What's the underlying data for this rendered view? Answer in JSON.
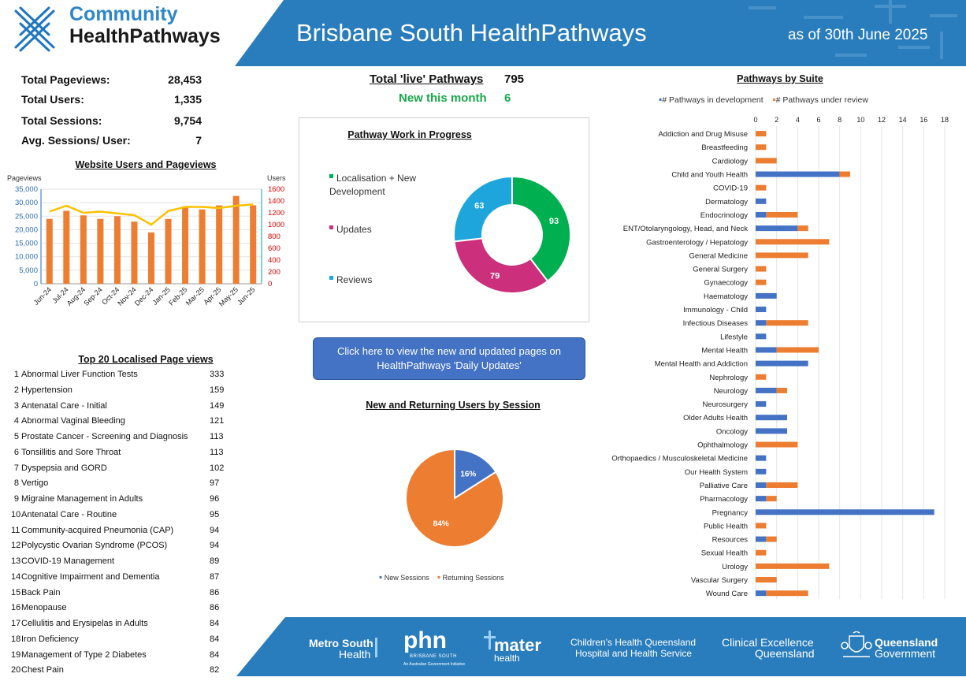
{
  "header": {
    "logo_line1": "Community",
    "logo_line2": "HealthPathways",
    "title": "Brisbane South HealthPathways",
    "as_of": "as of 30th June 2025"
  },
  "stats": [
    {
      "label": "Total Pageviews:",
      "value": "28,453"
    },
    {
      "label": "Total Users:",
      "value": "1,335"
    },
    {
      "label": "Total Sessions:",
      "value": "9,754"
    },
    {
      "label": "Avg. Sessions/ User:",
      "value": "7"
    }
  ],
  "pathways": {
    "total_label": "Total 'live' Pathways",
    "total_value": "795",
    "new_label": "New this month",
    "new_value": "6"
  },
  "updates_button": {
    "line1": "Click here to view the new and updated pages on",
    "line2": "HealthPathways 'Daily Updates'"
  },
  "top20": {
    "title": "Top 20 Localised Page views",
    "rows": [
      {
        "rank": "1",
        "name": "Abnormal Liver Function Tests",
        "count": "333"
      },
      {
        "rank": "2",
        "name": "Hypertension",
        "count": "159"
      },
      {
        "rank": "3",
        "name": "Antenatal Care - Initial",
        "count": "149"
      },
      {
        "rank": "4",
        "name": "Abnormal Vaginal Bleeding",
        "count": "121"
      },
      {
        "rank": "5",
        "name": "Prostate Cancer - Screening and Diagnosis",
        "count": "113"
      },
      {
        "rank": "6",
        "name": "Tonsillitis and Sore Throat",
        "count": "113"
      },
      {
        "rank": "7",
        "name": "Dyspepsia and GORD",
        "count": "102"
      },
      {
        "rank": "8",
        "name": "Vertigo",
        "count": "97"
      },
      {
        "rank": "9",
        "name": "Migraine Management in Adults",
        "count": "96"
      },
      {
        "rank": "10",
        "name": "Antenatal Care - Routine",
        "count": "95"
      },
      {
        "rank": "11",
        "name": "Community-acquired Pneumonia (CAP)",
        "count": "94"
      },
      {
        "rank": "12",
        "name": "Polycystic Ovarian Syndrome (PCOS)",
        "count": "94"
      },
      {
        "rank": "13",
        "name": "COVID-19 Management",
        "count": "89"
      },
      {
        "rank": "14",
        "name": "Cognitive Impairment and Dementia",
        "count": "87"
      },
      {
        "rank": "15",
        "name": "Back Pain",
        "count": "86"
      },
      {
        "rank": "16",
        "name": "Menopause",
        "count": "86"
      },
      {
        "rank": "17",
        "name": "Cellulitis and Erysipelas in Adults",
        "count": "84"
      },
      {
        "rank": "18",
        "name": "Iron Deficiency",
        "count": "84"
      },
      {
        "rank": "19",
        "name": "Management of Type 2 Diabetes",
        "count": "84"
      },
      {
        "rank": "20",
        "name": "Chest Pain",
        "count": "82"
      }
    ]
  },
  "footer": {
    "metro_south_1": "Metro South",
    "metro_south_2": "Health",
    "phn_1": "phn",
    "phn_2": "BRISBANE SOUTH",
    "phn_3": "An Australian Government Initiative",
    "mater_1": "mater",
    "mater_2": "health",
    "chq_1": "Children's Health Queensland",
    "chq_2": "Hospital and Health Service",
    "ceq_1": "Clinical Excellence",
    "ceq_2": "Queensland",
    "qg_1": "Queensland",
    "qg_2": "Government"
  },
  "colors": {
    "header_blue": "#2a7dbd",
    "orange": "#ed7d31",
    "blue": "#4472c4",
    "yellow_line": "#ffc000",
    "green": "#00b050",
    "magenta": "#cc2f7b",
    "cyan": "#1ea6dc",
    "new_green": "#18a84a"
  },
  "chart_data": [
    {
      "id": "users_pageviews",
      "type": "bar+line",
      "title": "Website Users and Pageviews",
      "ylabel": "Pageviews",
      "y2label": "Users",
      "ylim": [
        0,
        35000
      ],
      "y2lim": [
        0,
        1600
      ],
      "yticks": [
        "0",
        "5,000",
        "10,000",
        "15,000",
        "20,000",
        "25,000",
        "30,000",
        "35,000"
      ],
      "y2ticks": [
        "0",
        "200",
        "400",
        "600",
        "800",
        "1000",
        "1200",
        "1400",
        "1600"
      ],
      "categories": [
        "Jun-24",
        "Jul-24",
        "Aug-24",
        "Sep-24",
        "Oct-24",
        "Nov-24",
        "Dec-24",
        "Jan-25",
        "Feb-25",
        "Mar-25",
        "Apr-25",
        "May-25",
        "Jun-25"
      ],
      "series": [
        {
          "type": "bar",
          "values": [
            24000,
            27000,
            25300,
            24000,
            25000,
            23000,
            19000,
            24000,
            28500,
            27500,
            29000,
            32500,
            29000
          ]
        },
        {
          "type": "line",
          "values": [
            1220,
            1320,
            1200,
            1220,
            1190,
            1160,
            1000,
            1230,
            1300,
            1300,
            1280,
            1320,
            1340
          ]
        }
      ]
    },
    {
      "id": "wip",
      "type": "pie",
      "title": "Pathway Work in Progress",
      "labels": [
        "Localisation + New Development",
        "Updates",
        "Reviews"
      ],
      "values": [
        93,
        79,
        63
      ]
    },
    {
      "id": "sessions",
      "type": "pie",
      "title": "New and Returning Users by Session",
      "labels": [
        "New Sessions",
        "Returning Sessions"
      ],
      "values": [
        16,
        84
      ],
      "value_labels": [
        "16%",
        "84%"
      ]
    },
    {
      "id": "suites",
      "type": "bar",
      "orientation": "horizontal-stacked",
      "title": "Pathways by Suite",
      "xlim": [
        0,
        18
      ],
      "xticks": [
        "0",
        "2",
        "4",
        "6",
        "8",
        "10",
        "12",
        "14",
        "16",
        "18"
      ],
      "categories": [
        "Addiction and Drug Misuse",
        "Breastfeeding",
        "Cardiology",
        "Child and Youth Health",
        "COVID-19",
        "Dermatology",
        "Endocrinology",
        "ENT/Otolaryngology, Head, and Neck",
        "Gastroenterology / Hepatology",
        "General Medicine",
        "General Surgery",
        "Gynaecology",
        "Haematology",
        "Immunology - Child",
        "Infectious Diseases",
        "Lifestyle",
        "Mental Health",
        "Mental Health and Addiction",
        "Nephrology",
        "Neurology",
        "Neurosurgery",
        "Older Adults Health",
        "Oncology",
        "Ophthalmology",
        "Orthopaedics / Musculoskeletal Medicine",
        "Our Health System",
        "Palliative Care",
        "Pharmacology",
        "Pregnancy",
        "Public Health",
        "Resources",
        "Sexual Health",
        "Urology",
        "Vascular Surgery",
        "Wound Care"
      ],
      "series": [
        {
          "name": "# Pathways in development",
          "values": [
            0,
            0,
            0,
            8,
            0,
            1,
            1,
            4,
            0,
            0,
            0,
            0,
            2,
            1,
            1,
            1,
            2,
            5,
            0,
            2,
            1,
            3,
            3,
            0,
            1,
            1,
            1,
            1,
            17,
            0,
            1,
            0,
            0,
            0,
            1
          ]
        },
        {
          "name": "# Pathways under review",
          "values": [
            1,
            1,
            2,
            1,
            1,
            0,
            3,
            1,
            7,
            5,
            1,
            1,
            0,
            0,
            4,
            0,
            4,
            0,
            1,
            1,
            0,
            0,
            0,
            4,
            0,
            0,
            3,
            1,
            0,
            1,
            1,
            1,
            7,
            2,
            4
          ]
        }
      ]
    }
  ]
}
